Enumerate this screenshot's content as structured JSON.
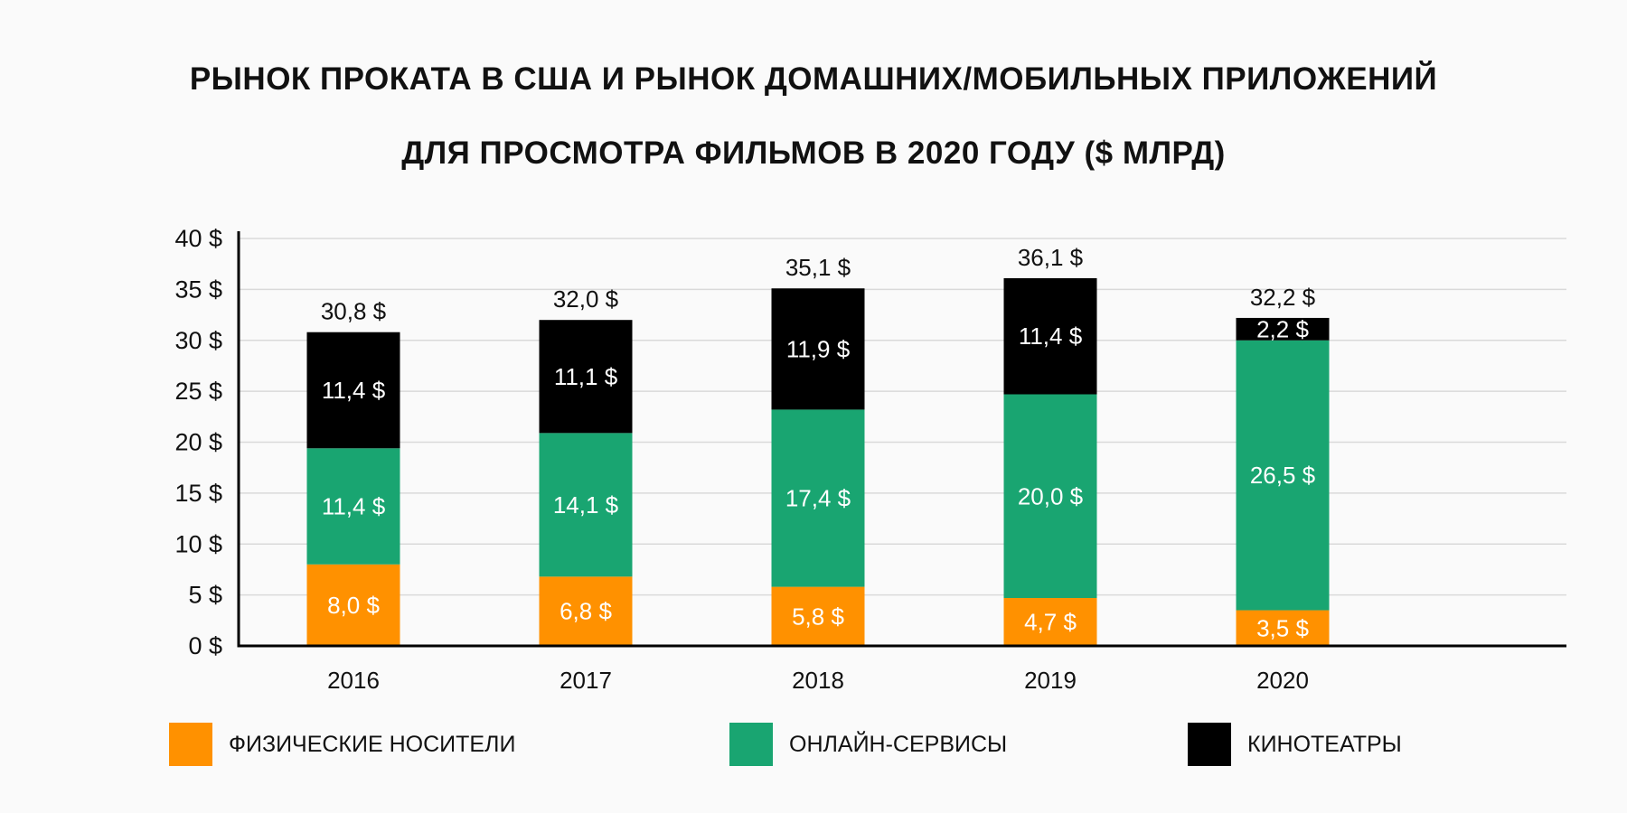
{
  "title_lines": [
    "РЫНОК ПРОКАТА В США И РЫНОК ДОМАШНИХ/МОБИЛЬНЫХ ПРИЛОЖЕНИЙ",
    "ДЛЯ ПРОСМОТРА ФИЛЬМОВ В 2020 ГОДУ ($ МЛРД)"
  ],
  "chart_data": {
    "type": "bar",
    "stacked": true,
    "title": "РЫНОК ПРОКАТА В США И РЫНОК ДОМАШНИХ/МОБИЛЬНЫХ ПРИЛОЖЕНИЙ ДЛЯ ПРОСМОТРА ФИЛЬМОВ В 2020 ГОДУ ($ МЛРД)",
    "categories": [
      "2016",
      "2017",
      "2018",
      "2019",
      "2020"
    ],
    "series": [
      {
        "name": "ФИЗИЧЕСКИЕ НОСИТЕЛИ",
        "color": "#ff9100",
        "values": [
          8.0,
          6.8,
          5.8,
          4.7,
          3.5
        ],
        "labels": [
          "8,0 $",
          "6,8 $",
          "5,8 $",
          "4,7 $",
          "3,5 $"
        ]
      },
      {
        "name": "ОНЛАЙН-СЕРВИСЫ",
        "color": "#19a571",
        "values": [
          11.4,
          14.1,
          17.4,
          20.0,
          26.5
        ],
        "labels": [
          "11,4 $",
          "14,1 $",
          "17,4 $",
          "20,0 $",
          "26,5 $"
        ]
      },
      {
        "name": "КИНОТЕАТРЫ",
        "color": "#000000",
        "values": [
          11.4,
          11.1,
          11.9,
          11.4,
          2.2
        ],
        "labels": [
          "11,4 $",
          "11,1 $",
          "11,9 $",
          "11,4 $",
          "2,2 $"
        ]
      }
    ],
    "totals": [
      30.8,
      32.0,
      35.1,
      36.1,
      32.2
    ],
    "total_labels": [
      "30,8 $",
      "32,0 $",
      "35,1 $",
      "36,1 $",
      "32,2 $"
    ],
    "ylim": [
      0,
      40
    ],
    "yticks": [
      0,
      5,
      10,
      15,
      20,
      25,
      30,
      35,
      40
    ],
    "ytick_labels": [
      "0 $",
      "5 $",
      "10 $",
      "15 $",
      "20 $",
      "25 $",
      "30 $",
      "35 $",
      "40 $"
    ],
    "xlabel": "",
    "ylabel": "",
    "grid": true,
    "legend_position": "bottom"
  }
}
